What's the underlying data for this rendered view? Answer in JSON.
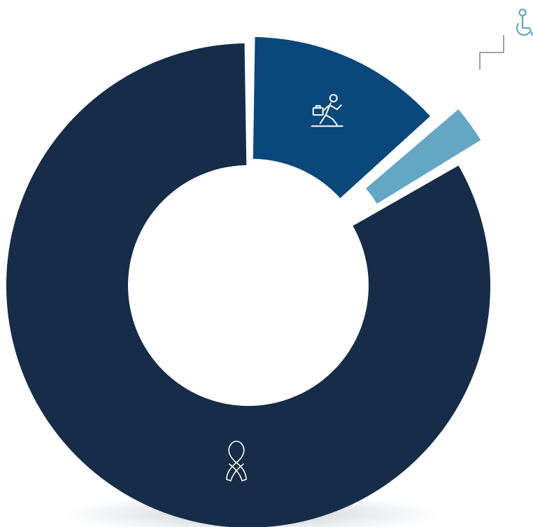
{
  "chart_data": {
    "type": "pie",
    "donut": true,
    "title": "",
    "legend": "none",
    "slices": [
      {
        "label": "",
        "icon": "running-person-briefcase-icon",
        "value": 13.5,
        "color": "#0a477b",
        "exploded": true
      },
      {
        "label": "",
        "icon": "wheelchair-icon",
        "value": 3.0,
        "color": "#64a7c5",
        "exploded": true
      },
      {
        "label": "",
        "icon": "awareness-ribbon-icon",
        "value": 83.5,
        "color": "#162c48",
        "exploded": false
      }
    ]
  }
}
